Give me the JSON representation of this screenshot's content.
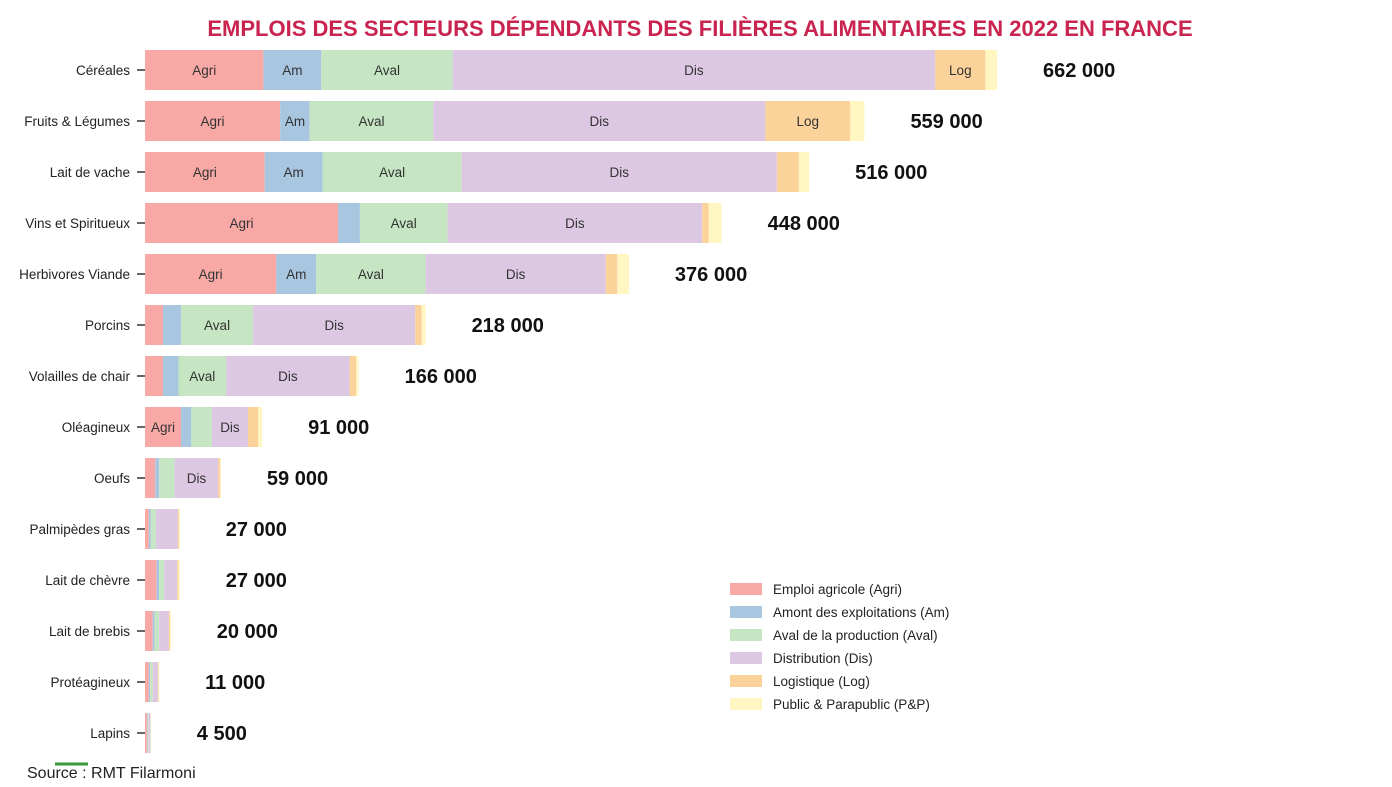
{
  "chart_data": {
    "type": "bar",
    "orientation": "horizontal",
    "stacked": true,
    "title": "EMPLOIS DES SECTEURS DÉPENDANTS DES FILIÈRES ALIMENTAIRES EN 2022 EN FRANCE",
    "source": "Source : RMT Filarmoni",
    "categories": [
      "Céréales",
      "Fruits & Légumes",
      "Lait de vache",
      "Vins et Spiritueux",
      "Herbivores Viande",
      "Porcins",
      "Volailles de chair",
      "Oléagineux",
      "Oeufs",
      "Palmipèdes gras",
      "Lait de chèvre",
      "Lait de brebis",
      "Protéagineux",
      "Lapins"
    ],
    "totals": [
      662000,
      559000,
      516000,
      448000,
      376000,
      218000,
      166000,
      91000,
      59000,
      27000,
      27000,
      20000,
      11000,
      4500
    ],
    "total_labels": [
      "662 000",
      "559 000",
      "516 000",
      "448 000",
      "376 000",
      "218 000",
      "166 000",
      "91 000",
      "59 000",
      "27 000",
      "27 000",
      "20 000",
      "11 000",
      "4 500"
    ],
    "series": [
      {
        "name": "Emploi agricole (Agri)",
        "short": "Agri",
        "color": "#f8a9a6",
        "values": [
          92000,
          105000,
          93000,
          150000,
          102000,
          14000,
          14000,
          28000,
          8000,
          3000,
          9000,
          6000,
          3000,
          1500
        ]
      },
      {
        "name": "Amont des exploitations (Am)",
        "short": "Am",
        "color": "#a9c6e0",
        "values": [
          45000,
          23000,
          45000,
          17000,
          31000,
          14000,
          12000,
          8000,
          3000,
          1500,
          2000,
          1500,
          1000,
          600
        ]
      },
      {
        "name": "Aval de la production (Aval)",
        "short": "Aval",
        "color": "#c6e6c3",
        "values": [
          102000,
          96000,
          108000,
          68000,
          85000,
          56000,
          37000,
          16000,
          12000,
          4000,
          4000,
          3500,
          2000,
          800
        ]
      },
      {
        "name": "Distribution (Dis)",
        "short": "Dis",
        "color": "#ddc8e3",
        "values": [
          375000,
          258000,
          245000,
          198000,
          140000,
          126000,
          96000,
          28000,
          34000,
          17000,
          10000,
          7500,
          4000,
          1300
        ]
      },
      {
        "name": "Logistique (Log)",
        "short": "Log",
        "color": "#fbd29a",
        "values": [
          39000,
          66000,
          17000,
          5000,
          9000,
          5000,
          5000,
          8000,
          1500,
          1000,
          1000,
          1000,
          600,
          200
        ]
      },
      {
        "name": "Public & Parapublic (P&P)",
        "short": "P&P",
        "color": "#fff6c2",
        "values": [
          9000,
          11000,
          8000,
          10000,
          9000,
          3000,
          2000,
          3000,
          500,
          500,
          1000,
          500,
          400,
          100
        ]
      }
    ],
    "segment_labels": [
      [
        "Agri",
        "Am",
        "Aval",
        "Dis",
        "Log",
        ""
      ],
      [
        "Agri",
        "Am",
        "Aval",
        "Dis",
        "Log",
        ""
      ],
      [
        "Agri",
        "Am",
        "Aval",
        "Dis",
        "",
        ""
      ],
      [
        "Agri",
        "",
        "Aval",
        "Dis",
        "",
        ""
      ],
      [
        "Agri",
        "Am",
        "Aval",
        "Dis",
        "",
        ""
      ],
      [
        "",
        "",
        "Aval",
        "Dis",
        "",
        ""
      ],
      [
        "",
        "",
        "Aval",
        "Dis",
        "",
        ""
      ],
      [
        "Agri",
        "",
        "",
        "Dis",
        "",
        ""
      ],
      [
        "",
        "",
        "",
        "Dis",
        "",
        ""
      ],
      [
        "",
        "",
        "",
        "",
        "",
        ""
      ],
      [
        "",
        "",
        "",
        "",
        "",
        ""
      ],
      [
        "",
        "",
        "",
        "",
        "",
        ""
      ],
      [
        "",
        "",
        "",
        "",
        "",
        ""
      ],
      [
        "",
        "",
        "",
        "",
        "",
        ""
      ]
    ],
    "legend": {
      "position": "bottom-right",
      "entries": [
        "Emploi agricole (Agri)",
        "Amont des exploitations (Am)",
        "Aval de la production (Aval)",
        "Distribution (Dis)",
        "Logistique (Log)",
        "Public & Parapublic (P&P)"
      ]
    },
    "grid": false
  }
}
